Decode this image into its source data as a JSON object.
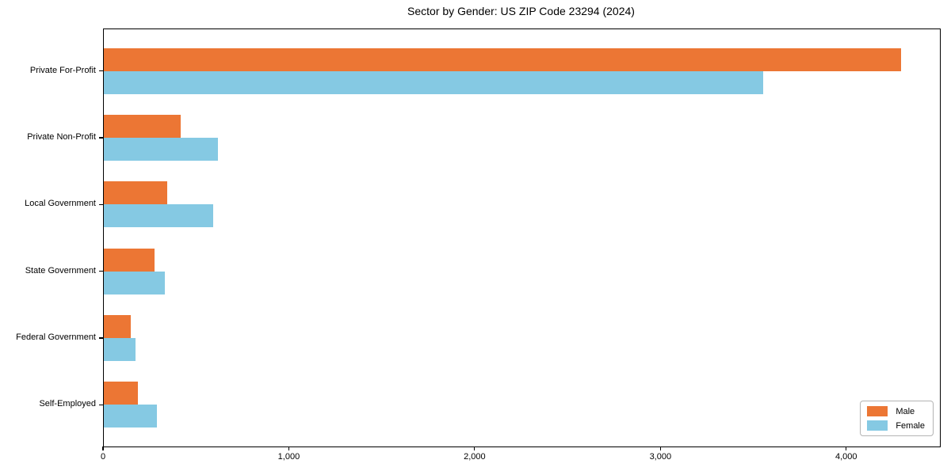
{
  "chart_data": {
    "type": "bar",
    "orientation": "horizontal",
    "title": "Sector by Gender: US ZIP Code 23294 (2024)",
    "categories": [
      "Private For-Profit",
      "Private Non-Profit",
      "Local Government",
      "State Government",
      "Federal Government",
      "Self-Employed"
    ],
    "series": [
      {
        "name": "Male",
        "color": "#ec7634",
        "values": [
          4290,
          415,
          340,
          275,
          145,
          185
        ]
      },
      {
        "name": "Female",
        "color": "#85c9e3",
        "values": [
          3550,
          615,
          590,
          330,
          170,
          285
        ]
      }
    ],
    "xlim": [
      0,
      4500
    ],
    "xticks": [
      0,
      1000,
      2000,
      3000,
      4000
    ],
    "xtick_labels": [
      "0",
      "1,000",
      "2,000",
      "3,000",
      "4,000"
    ],
    "xlabel": "",
    "ylabel": "",
    "grid": false,
    "legend_position": "lower right",
    "axis_color": "#000000",
    "background_color": "#ffffff"
  }
}
